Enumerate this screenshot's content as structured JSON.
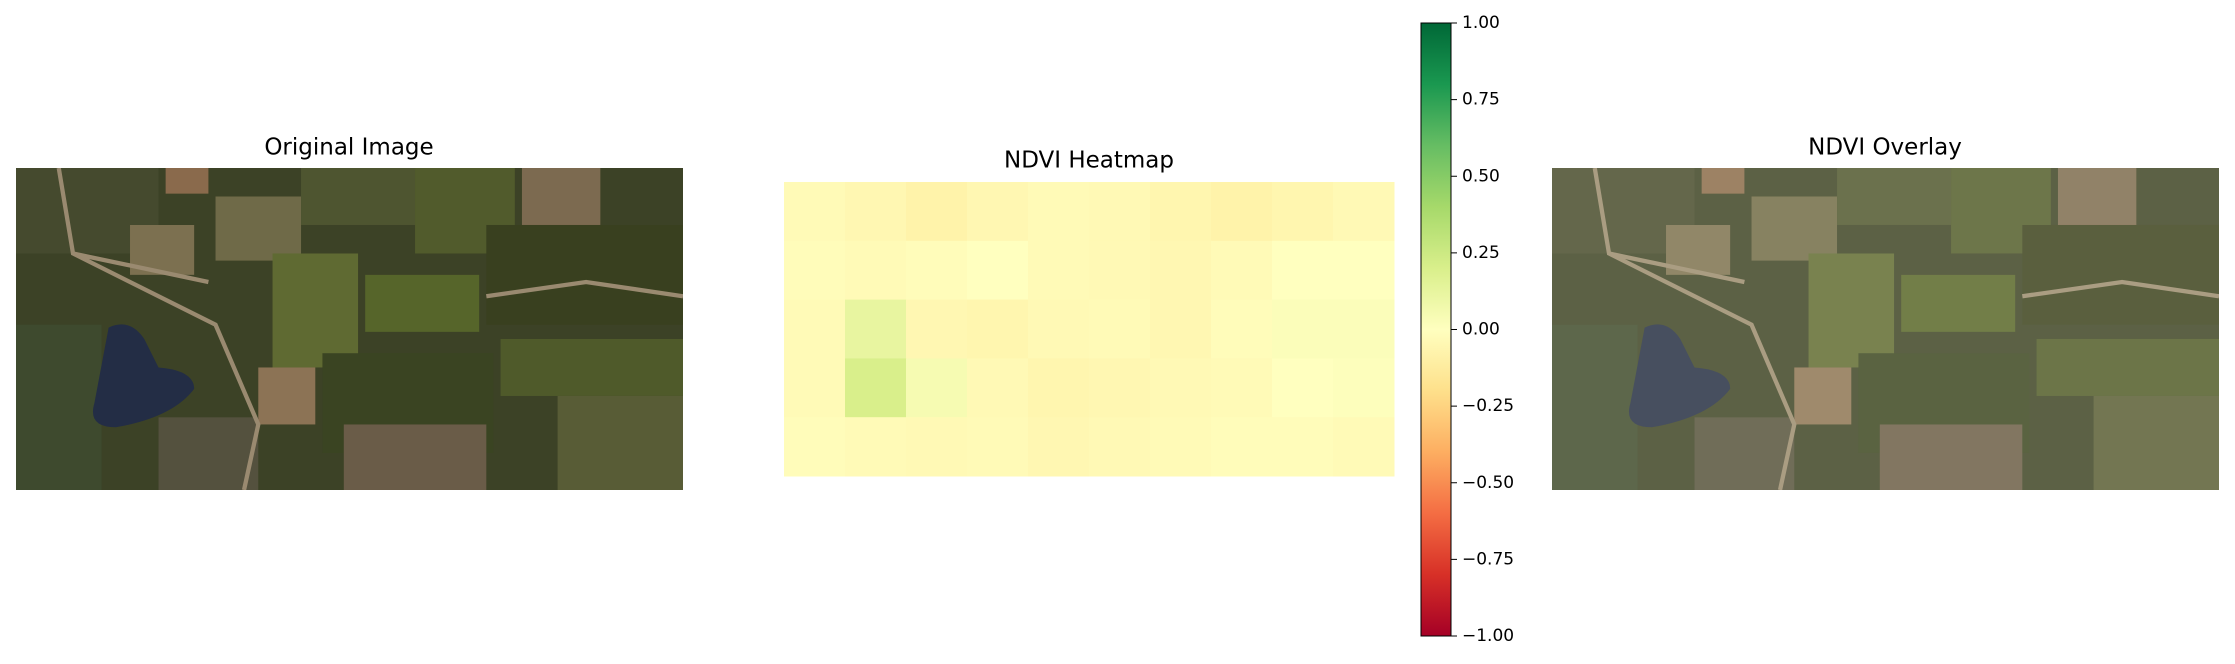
{
  "chart_data": [
    {
      "type": "image",
      "title": "Original Image"
    },
    {
      "type": "heatmap",
      "title": "NDVI Heatmap",
      "values": [
        [
          -0.03,
          -0.05,
          -0.08,
          -0.05,
          -0.03,
          -0.04,
          -0.06,
          -0.08,
          -0.06,
          -0.04
        ],
        [
          -0.02,
          -0.03,
          -0.02,
          0.0,
          -0.03,
          -0.04,
          -0.05,
          -0.03,
          0.0,
          0.0
        ],
        [
          -0.03,
          0.12,
          -0.05,
          -0.06,
          -0.04,
          -0.03,
          -0.05,
          -0.02,
          0.02,
          0.02
        ],
        [
          -0.03,
          0.2,
          0.05,
          -0.04,
          -0.06,
          -0.05,
          -0.04,
          -0.03,
          0.0,
          0.01
        ],
        [
          -0.02,
          -0.03,
          -0.04,
          -0.03,
          -0.05,
          -0.04,
          -0.03,
          -0.02,
          -0.02,
          -0.03
        ]
      ],
      "ylim": [
        -1,
        1
      ],
      "yticks": [
        {
          "value": 1,
          "label": "1.00"
        },
        0.75,
        {
          "value": 0.5,
          "label": "0.50"
        },
        0.25,
        {
          "value": 0,
          "label": "0.00"
        },
        {
          "value": -0.25,
          "label": "−0.25"
        },
        {
          "value": -0.5,
          "label": "−0.50"
        },
        {
          "value": -0.75,
          "label": "−0.75"
        },
        {
          "value": -1,
          "label": "−1.00"
        }
      ]
    },
    {
      "type": "image",
      "title": "NDVI Overlay"
    }
  ]
}
